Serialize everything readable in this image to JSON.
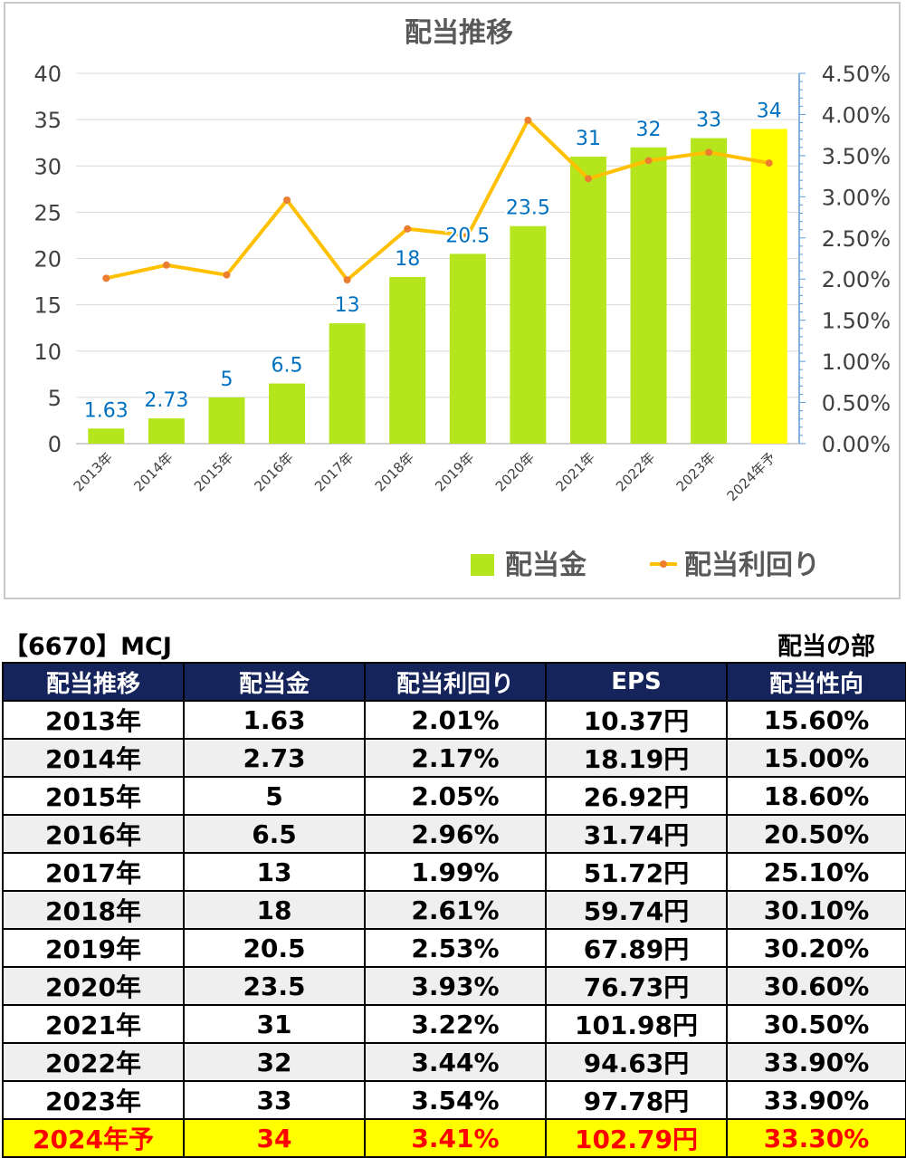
{
  "chart_data": {
    "type": "bar+line",
    "title": "配当推移",
    "categories": [
      "2013年",
      "2014年",
      "2015年",
      "2016年",
      "2017年",
      "2018年",
      "2019年",
      "2020年",
      "2021年",
      "2022年",
      "2023年",
      "2024年予"
    ],
    "series": [
      {
        "name": "配当金",
        "type": "bar",
        "axis": "left",
        "values": [
          1.63,
          2.73,
          5,
          6.5,
          13,
          18,
          20.5,
          23.5,
          31,
          32,
          33,
          34
        ],
        "labels": [
          "1.63",
          "2.73",
          "5",
          "6.5",
          "13",
          "18",
          "20.5",
          "23.5",
          "31",
          "32",
          "33",
          "34"
        ]
      },
      {
        "name": "配当利回り",
        "type": "line",
        "axis": "right",
        "values": [
          2.01,
          2.17,
          2.05,
          2.96,
          1.99,
          2.61,
          2.53,
          3.93,
          3.22,
          3.44,
          3.54,
          3.41
        ]
      }
    ],
    "ylim_left": [
      0,
      40
    ],
    "yticks_left": [
      "0",
      "5",
      "10",
      "15",
      "20",
      "25",
      "30",
      "35",
      "40"
    ],
    "ylim_right": [
      0,
      4.5
    ],
    "yticks_right": [
      "0.00%",
      "0.50%",
      "1.00%",
      "1.50%",
      "2.00%",
      "2.50%",
      "3.00%",
      "3.50%",
      "4.00%",
      "4.50%"
    ],
    "grid": true,
    "legend_position": "bottom-right",
    "colors": {
      "bar": "#b5e61d",
      "bar_forecast": "#ffff00",
      "line": "#ffc000",
      "marker": "#ed7d31",
      "label": "#0070c0",
      "grid": "#d9d9d9",
      "axis_right": "#5b9bd5"
    }
  },
  "company": "【6670】MCJ",
  "section": "配当の部",
  "table": {
    "headers": [
      "配当推移",
      "配当金",
      "配当利回り",
      "EPS",
      "配当性向"
    ],
    "rows": [
      [
        "2013年",
        "1.63",
        "2.01%",
        "10.37円",
        "15.60%"
      ],
      [
        "2014年",
        "2.73",
        "2.17%",
        "18.19円",
        "15.00%"
      ],
      [
        "2015年",
        "5",
        "2.05%",
        "26.92円",
        "18.60%"
      ],
      [
        "2016年",
        "6.5",
        "2.96%",
        "31.74円",
        "20.50%"
      ],
      [
        "2017年",
        "13",
        "1.99%",
        "51.72円",
        "25.10%"
      ],
      [
        "2018年",
        "18",
        "2.61%",
        "59.74円",
        "30.10%"
      ],
      [
        "2019年",
        "20.5",
        "2.53%",
        "67.89円",
        "30.20%"
      ],
      [
        "2020年",
        "23.5",
        "3.93%",
        "76.73円",
        "30.60%"
      ],
      [
        "2021年",
        "31",
        "3.22%",
        "101.98円",
        "30.50%"
      ],
      [
        "2022年",
        "32",
        "3.44%",
        "94.63円",
        "33.90%"
      ],
      [
        "2023年",
        "33",
        "3.54%",
        "97.78円",
        "33.90%"
      ],
      [
        "2024年予",
        "34",
        "3.41%",
        "102.79円",
        "33.30%"
      ]
    ]
  }
}
